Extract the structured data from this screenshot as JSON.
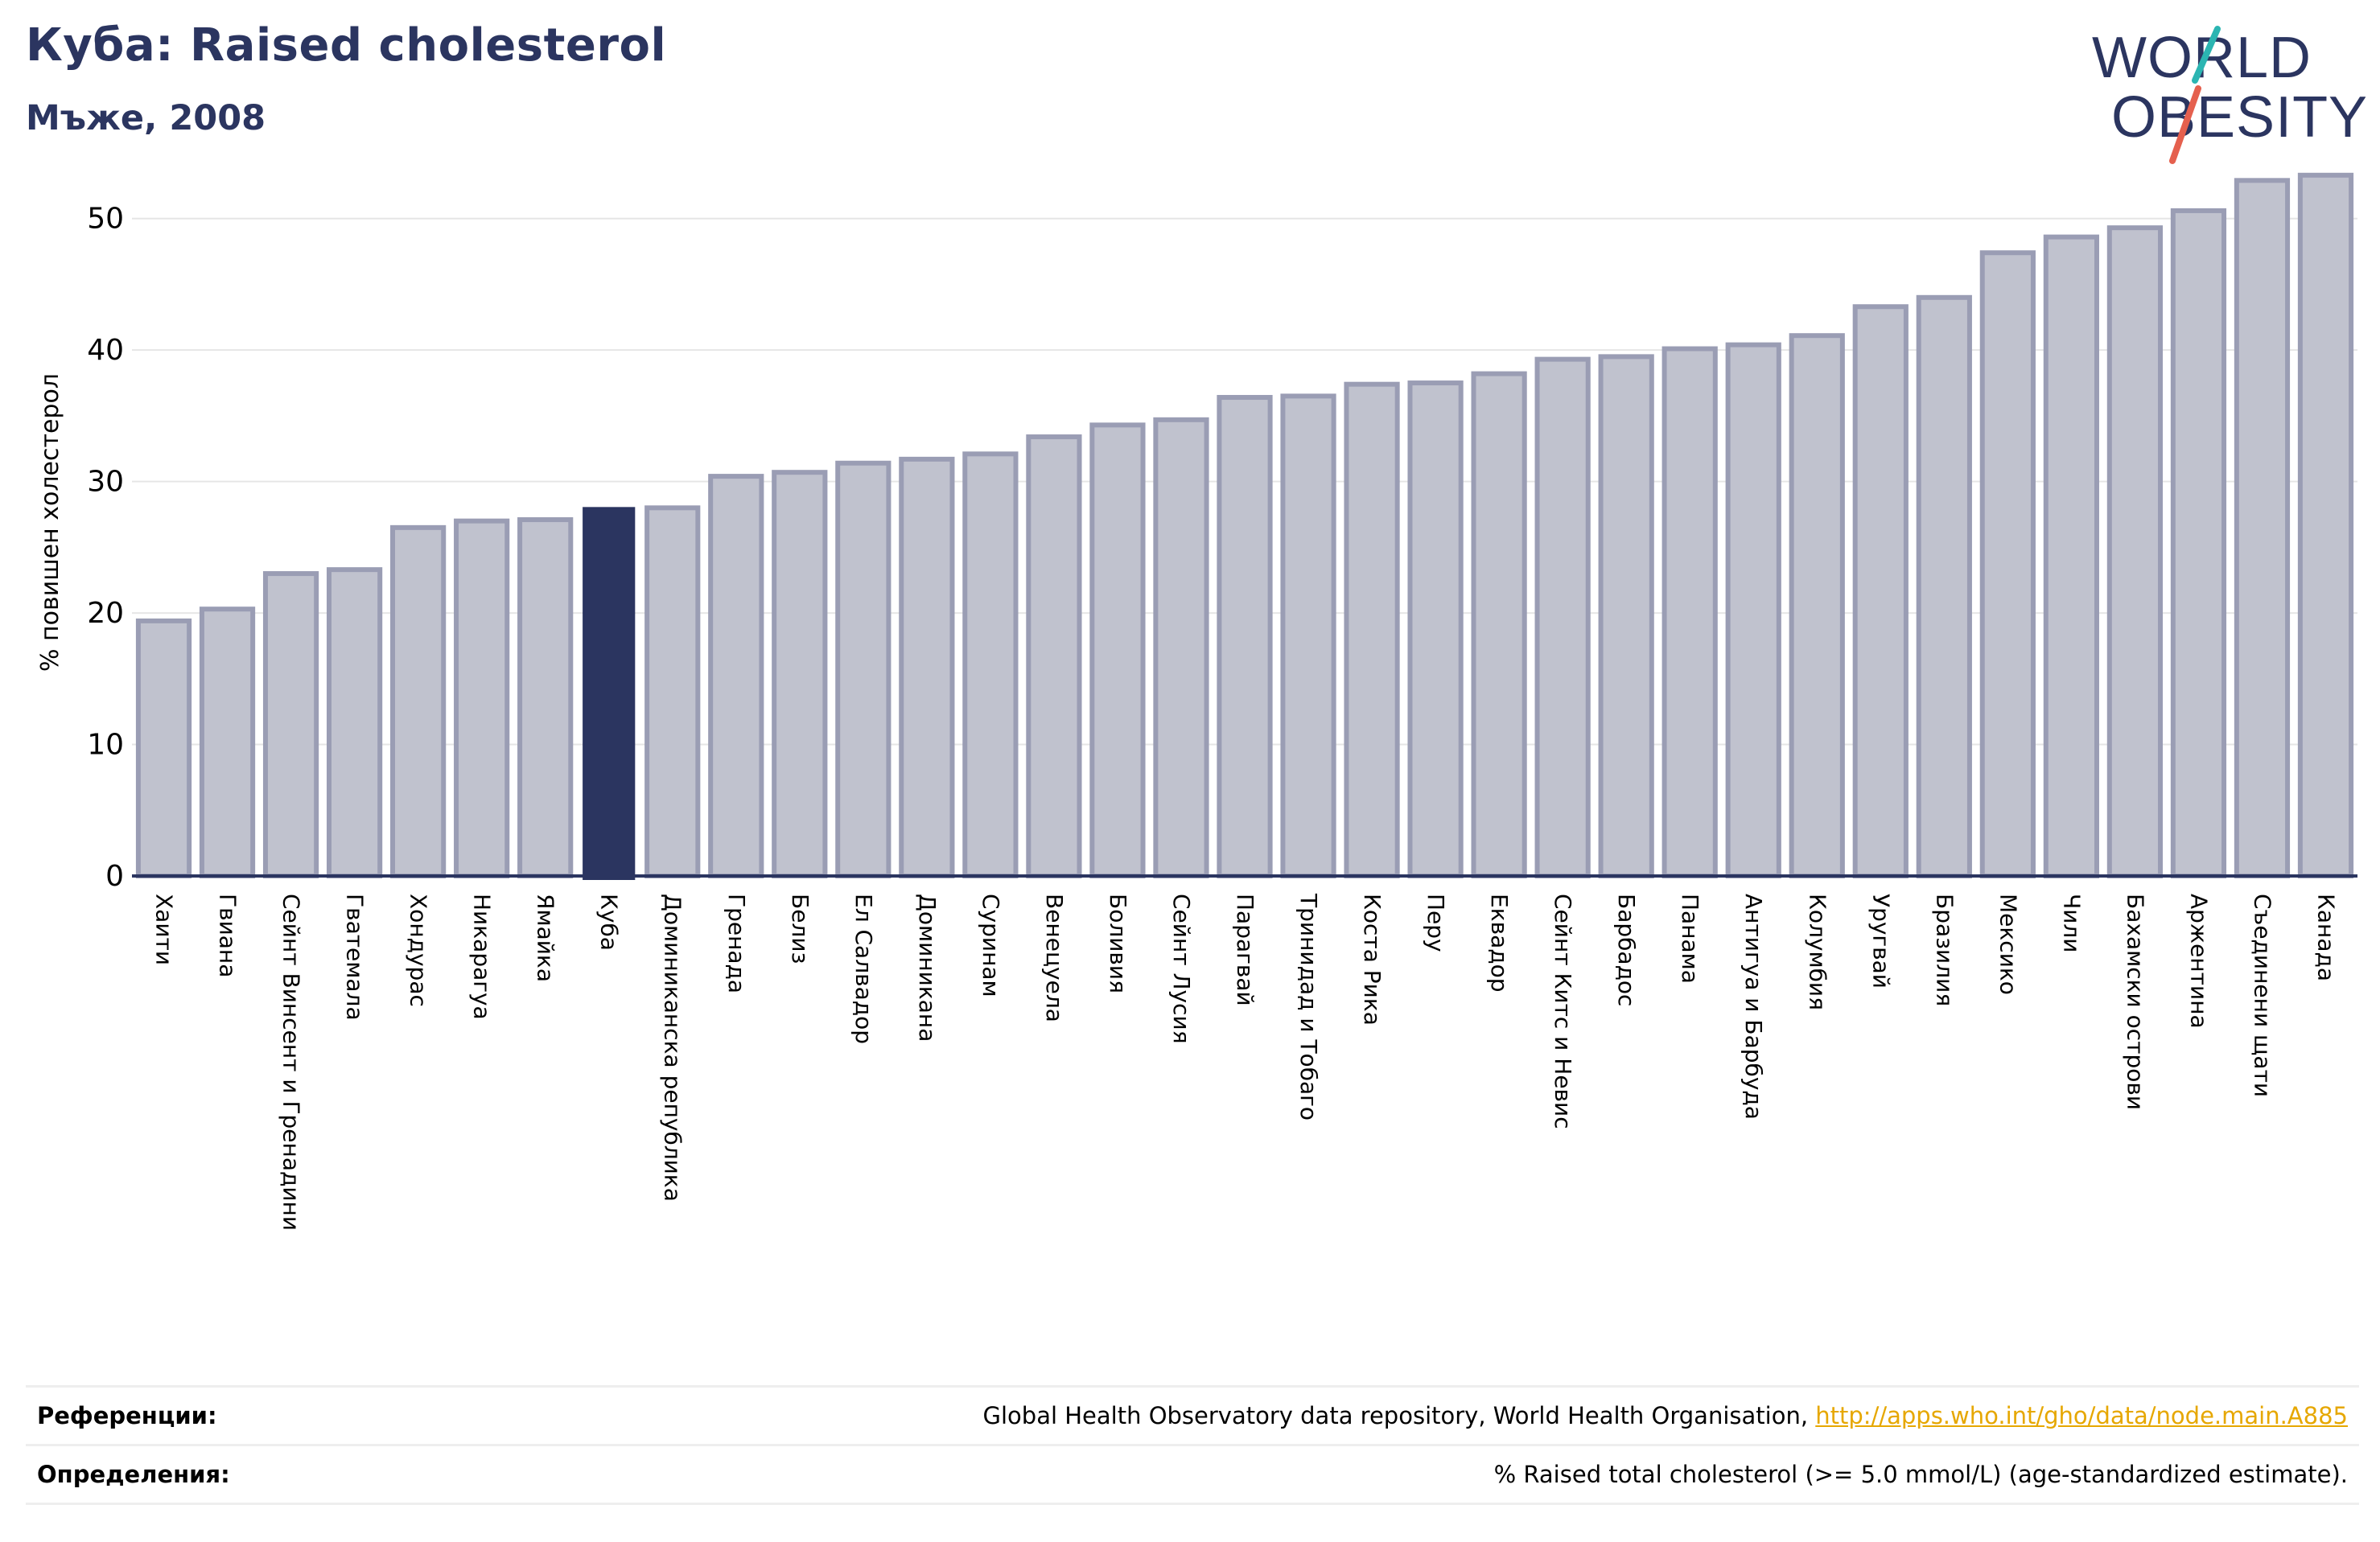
{
  "header": {
    "title": "Куба: Raised cholesterol",
    "subtitle": "Мъже, 2008"
  },
  "logo": {
    "line1": "WORLD",
    "line2": "OBESITY",
    "accent_colors": [
      "#2bb5b2",
      "#e5604e"
    ],
    "text_color": "#2b3560"
  },
  "colors": {
    "bar": "#c0c2ce",
    "bar_border": "#9a9db4",
    "highlight": "#2b3560",
    "text": "#2b3560"
  },
  "chart_data": {
    "type": "bar",
    "ylabel": "% повишен холестерол",
    "xlabel": "",
    "ylim": [
      0,
      55
    ],
    "yticks": [
      0,
      10,
      20,
      30,
      40,
      50
    ],
    "grid": true,
    "highlight": "Куба",
    "categories": [
      "Хаити",
      "Гвиана",
      "Сейнт Винсент и Гренадини",
      "Гватемала",
      "Хондурас",
      "Никарагуа",
      "Ямайка",
      "Куба",
      "Доминиканска република",
      "Гренада",
      "Белиз",
      "Ел Салвадор",
      "Доминикана",
      "Суринам",
      "Венецуела",
      "Боливия",
      "Сейнт Лусия",
      "Парагвай",
      "Тринидад и Тобаго",
      "Коста Рика",
      "Перу",
      "Еквадор",
      "Сейнт Китс и Невис",
      "Барбадос",
      "Панама",
      "Антигуа и Барбуда",
      "Колумбия",
      "Уругвай",
      "Бразилия",
      "Мексико",
      "Чили",
      "Бахамски острови",
      "Аржентина",
      "Съединени щати",
      "Канада"
    ],
    "values": [
      19.4,
      20.3,
      23.0,
      23.3,
      26.5,
      27.0,
      27.1,
      28.0,
      28.0,
      30.4,
      30.7,
      31.4,
      31.7,
      32.1,
      33.4,
      34.3,
      34.7,
      36.4,
      36.5,
      37.4,
      37.5,
      38.2,
      39.3,
      39.5,
      40.1,
      40.4,
      41.1,
      43.3,
      44.0,
      47.4,
      48.6,
      49.3,
      50.6,
      52.9,
      53.3
    ]
  },
  "references": [
    {
      "label": "Референции:",
      "text": "Global Health Observatory data repository, World Health Organisation, ",
      "link": "http://apps.who.int/gho/data/node.main.A885"
    },
    {
      "label": "Определения:",
      "text": "% Raised total cholesterol (>= 5.0 mmol/L) (age-standardized estimate)."
    }
  ]
}
